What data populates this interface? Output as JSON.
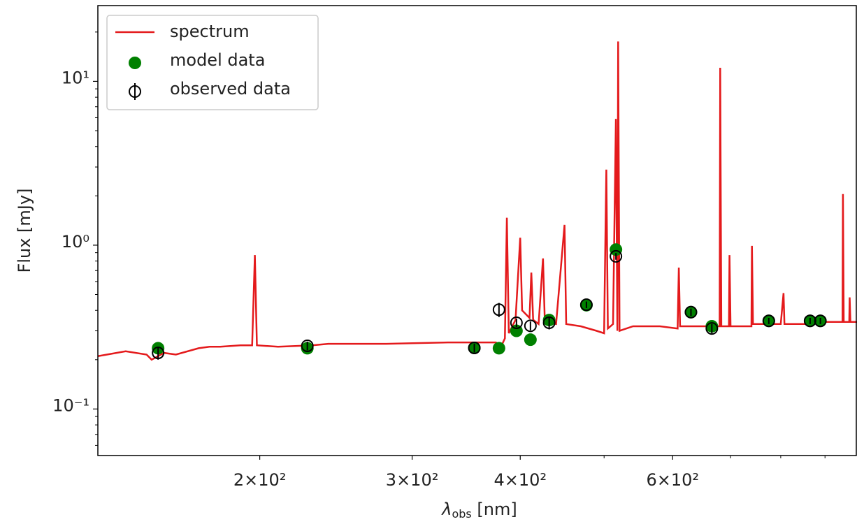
{
  "chart_data": {
    "type": "loglog",
    "xlabel": {
      "main": "λ",
      "sub": "obs",
      "rest": " [nm]"
    },
    "ylabel": "Flux [mJy]",
    "xscale": "log",
    "yscale": "log",
    "xlim": [
      130,
      980
    ],
    "ylim": [
      0.052,
      29
    ],
    "xticks": [
      {
        "value": 200,
        "label": "2×10²"
      },
      {
        "value": 300,
        "label": "3×10²"
      },
      {
        "value": 400,
        "label": "4×10²"
      },
      {
        "value": 600,
        "label": "6×10²"
      }
    ],
    "xminor": [
      500,
      700,
      800,
      900
    ],
    "yticks": [
      {
        "value": 0.1,
        "label": "10⁻¹"
      },
      {
        "value": 1,
        "label": "10⁰"
      },
      {
        "value": 10,
        "label": "10¹"
      }
    ],
    "yminor": [
      0.06,
      0.07,
      0.08,
      0.09,
      0.2,
      0.3,
      0.4,
      0.5,
      0.6,
      0.7,
      0.8,
      0.9,
      2,
      3,
      4,
      5,
      6,
      7,
      8,
      9,
      20
    ],
    "legend": "upper left",
    "series": [
      {
        "name": "spectrum",
        "kind": "line",
        "color": "#e41a1c",
        "x": [
          130,
          140,
          148,
          150,
          155,
          160,
          170,
          175,
          180,
          190,
          196,
          197.4,
          198.5,
          210,
          230,
          240,
          260,
          280,
          300,
          330,
          360,
          375,
          380,
          384,
          386,
          388,
          395,
          400,
          402,
          410,
          412,
          414,
          420,
          425,
          427,
          440,
          450,
          452,
          470,
          490,
          500,
          503,
          505,
          512,
          516,
          518,
          519,
          521,
          540,
          580,
          608,
          610,
          612,
          660,
          680,
          681,
          683,
          697,
          698,
          700,
          740,
          741,
          743,
          800,
          806,
          808,
          870,
          900,
          943,
          944,
          946,
          960,
          961,
          963,
          980
        ],
        "values": [
          0.21,
          0.225,
          0.215,
          0.2,
          0.22,
          0.215,
          0.235,
          0.24,
          0.24,
          0.245,
          0.245,
          0.87,
          0.245,
          0.24,
          0.245,
          0.25,
          0.25,
          0.25,
          0.252,
          0.255,
          0.255,
          0.255,
          0.24,
          0.27,
          1.47,
          0.29,
          0.35,
          1.11,
          0.4,
          0.36,
          0.68,
          0.35,
          0.33,
          0.83,
          0.34,
          0.33,
          1.33,
          0.33,
          0.32,
          0.3,
          0.29,
          2.89,
          0.31,
          0.33,
          5.9,
          0.3,
          17.5,
          0.3,
          0.32,
          0.32,
          0.31,
          0.73,
          0.32,
          0.32,
          0.32,
          12.1,
          0.32,
          0.32,
          0.87,
          0.32,
          0.32,
          0.99,
          0.33,
          0.33,
          0.51,
          0.33,
          0.33,
          0.34,
          0.34,
          2.05,
          0.34,
          0.34,
          0.48,
          0.34,
          0.34
        ]
      },
      {
        "name": "model data",
        "kind": "points",
        "color": "green",
        "x": [
          152.6,
          227,
          354,
          378,
          396,
          411,
          432,
          477,
          516,
          630,
          666,
          775,
          865,
          889
        ],
        "values": [
          0.235,
          0.235,
          0.236,
          0.235,
          0.3,
          0.265,
          0.349,
          0.43,
          0.94,
          0.39,
          0.32,
          0.345,
          0.345,
          0.345
        ]
      },
      {
        "name": "observed data",
        "kind": "errorbar",
        "color": "black",
        "x": [
          152.6,
          227,
          354,
          378,
          396,
          411,
          432,
          477,
          516,
          630,
          666,
          775,
          865,
          889
        ],
        "values": [
          0.22,
          0.243,
          0.236,
          0.404,
          0.336,
          0.322,
          0.336,
          0.433,
          0.855,
          0.39,
          0.31,
          0.345,
          0.345,
          0.345
        ],
        "errors": [
          0.02,
          0.015,
          0.015,
          0.04,
          0.02,
          0.02,
          0.03,
          0.02,
          0.04,
          0.02,
          0.02,
          0.015,
          0.015,
          0.015
        ]
      }
    ]
  }
}
